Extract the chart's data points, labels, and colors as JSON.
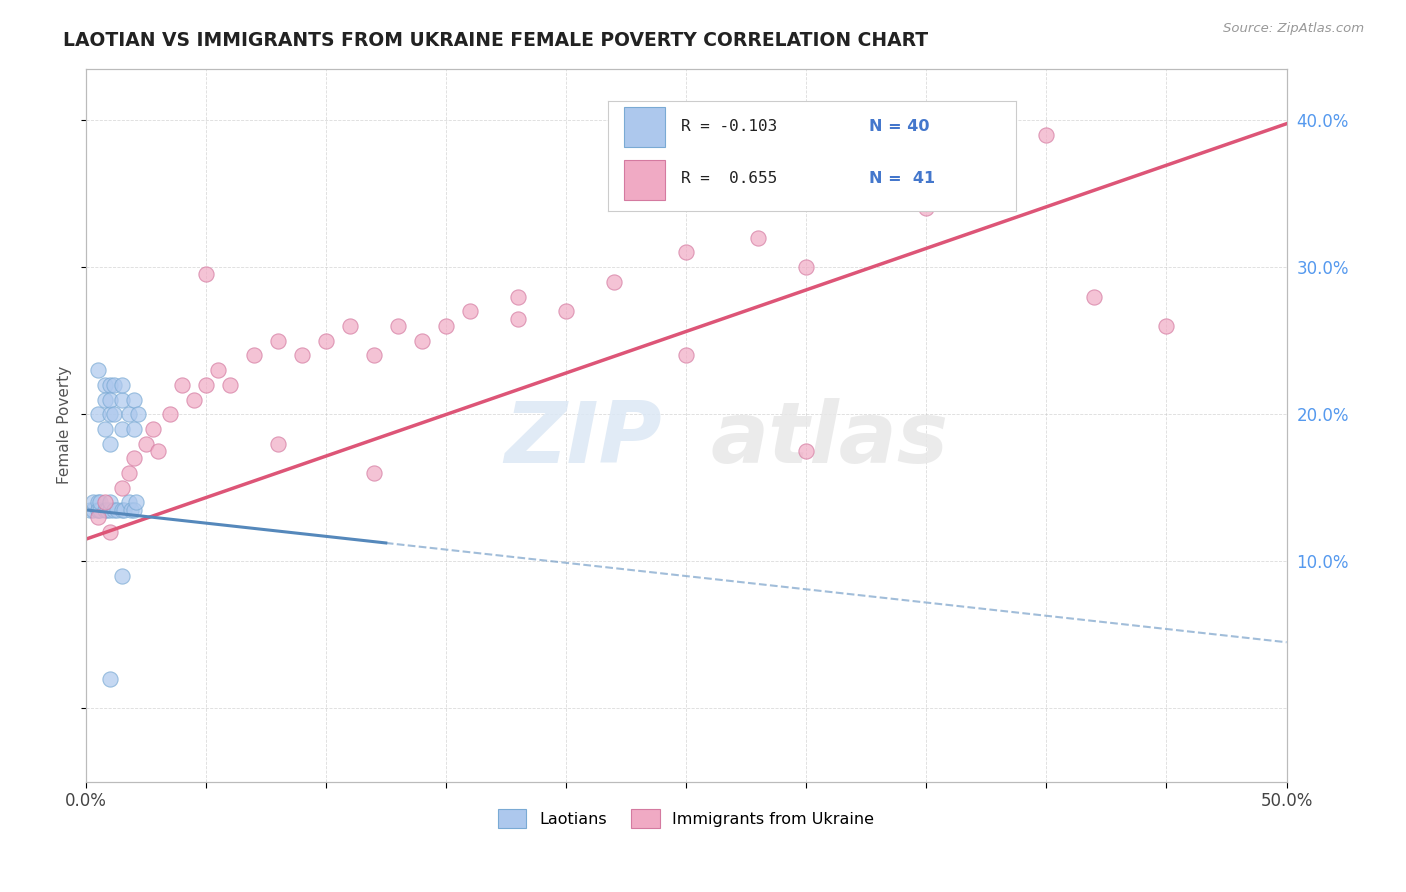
{
  "title": "LAOTIAN VS IMMIGRANTS FROM UKRAINE FEMALE POVERTY CORRELATION CHART",
  "source": "Source: ZipAtlas.com",
  "ylabel": "Female Poverty",
  "xlim": [
    0.0,
    0.5
  ],
  "ylim": [
    -0.05,
    0.435
  ],
  "color_blue": "#adc8ed",
  "color_pink": "#f0aac4",
  "color_blue_dark": "#7aaad4",
  "color_pink_dark": "#d47aa0",
  "color_line_blue": "#5588bb",
  "color_line_pink": "#dd5577",
  "watermark_zip": "ZIP",
  "watermark_atlas": "atlas",
  "background_color": "#ffffff",
  "grid_color": "#cccccc",
  "lao_r": -0.103,
  "lao_n": 40,
  "ukr_r": 0.655,
  "ukr_n": 41,
  "lao_intercept": 0.135,
  "lao_slope": -0.18,
  "ukr_intercept": 0.115,
  "ukr_slope": 0.565,
  "laotian_x": [
    0.005,
    0.005,
    0.008,
    0.008,
    0.008,
    0.01,
    0.01,
    0.01,
    0.01,
    0.012,
    0.012,
    0.015,
    0.015,
    0.015,
    0.018,
    0.02,
    0.02,
    0.022,
    0.002,
    0.003,
    0.003,
    0.005,
    0.005,
    0.005,
    0.006,
    0.006,
    0.008,
    0.009,
    0.01,
    0.01,
    0.012,
    0.013,
    0.015,
    0.016,
    0.018,
    0.019,
    0.02,
    0.021,
    0.015,
    0.01
  ],
  "laotian_y": [
    0.23,
    0.2,
    0.22,
    0.21,
    0.19,
    0.22,
    0.2,
    0.18,
    0.21,
    0.22,
    0.2,
    0.21,
    0.19,
    0.22,
    0.2,
    0.21,
    0.19,
    0.2,
    0.135,
    0.135,
    0.14,
    0.135,
    0.14,
    0.135,
    0.135,
    0.14,
    0.135,
    0.135,
    0.135,
    0.14,
    0.135,
    0.135,
    0.135,
    0.135,
    0.14,
    0.135,
    0.135,
    0.14,
    0.09,
    0.02
  ],
  "ukraine_x": [
    0.005,
    0.008,
    0.01,
    0.015,
    0.018,
    0.02,
    0.025,
    0.028,
    0.03,
    0.035,
    0.04,
    0.045,
    0.05,
    0.055,
    0.06,
    0.07,
    0.08,
    0.09,
    0.1,
    0.11,
    0.12,
    0.13,
    0.14,
    0.15,
    0.16,
    0.18,
    0.2,
    0.22,
    0.25,
    0.28,
    0.3,
    0.35,
    0.4,
    0.42,
    0.45,
    0.05,
    0.08,
    0.12,
    0.18,
    0.25,
    0.3
  ],
  "ukraine_y": [
    0.13,
    0.14,
    0.12,
    0.15,
    0.16,
    0.17,
    0.18,
    0.19,
    0.175,
    0.2,
    0.22,
    0.21,
    0.22,
    0.23,
    0.22,
    0.24,
    0.25,
    0.24,
    0.25,
    0.26,
    0.24,
    0.26,
    0.25,
    0.26,
    0.27,
    0.28,
    0.27,
    0.29,
    0.31,
    0.32,
    0.3,
    0.34,
    0.39,
    0.28,
    0.26,
    0.295,
    0.18,
    0.16,
    0.265,
    0.24,
    0.175
  ]
}
